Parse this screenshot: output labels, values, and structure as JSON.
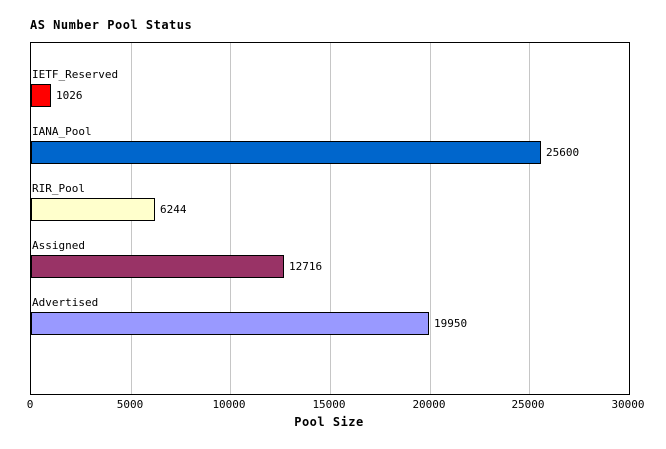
{
  "chart_data": {
    "type": "bar",
    "orientation": "horizontal",
    "title": "AS Number Pool Status",
    "xlabel": "Pool Size",
    "categories": [
      "IETF_Reserved",
      "IANA_Pool",
      "RIR_Pool",
      "Assigned",
      "Advertised"
    ],
    "values": [
      1026,
      25600,
      6244,
      12716,
      19950
    ],
    "value_labels": [
      "1026",
      "25600",
      "6244",
      "12716",
      "19950"
    ],
    "bar_colors": [
      "#ff0000",
      "#0066cc",
      "#ffffcc",
      "#993366",
      "#9999ff"
    ],
    "xlim": [
      0,
      30000
    ],
    "xticks": [
      0,
      5000,
      10000,
      15000,
      20000,
      25000,
      30000
    ],
    "xtick_labels": [
      "0",
      "5000",
      "10000",
      "15000",
      "20000",
      "25000",
      "30000"
    ],
    "grid": "vertical-gridlines-on",
    "legend": "none"
  },
  "colors": {
    "background": "#ffffff",
    "plot_border": "#000000",
    "gridline": "#c6c6c6",
    "text": "#000000"
  }
}
